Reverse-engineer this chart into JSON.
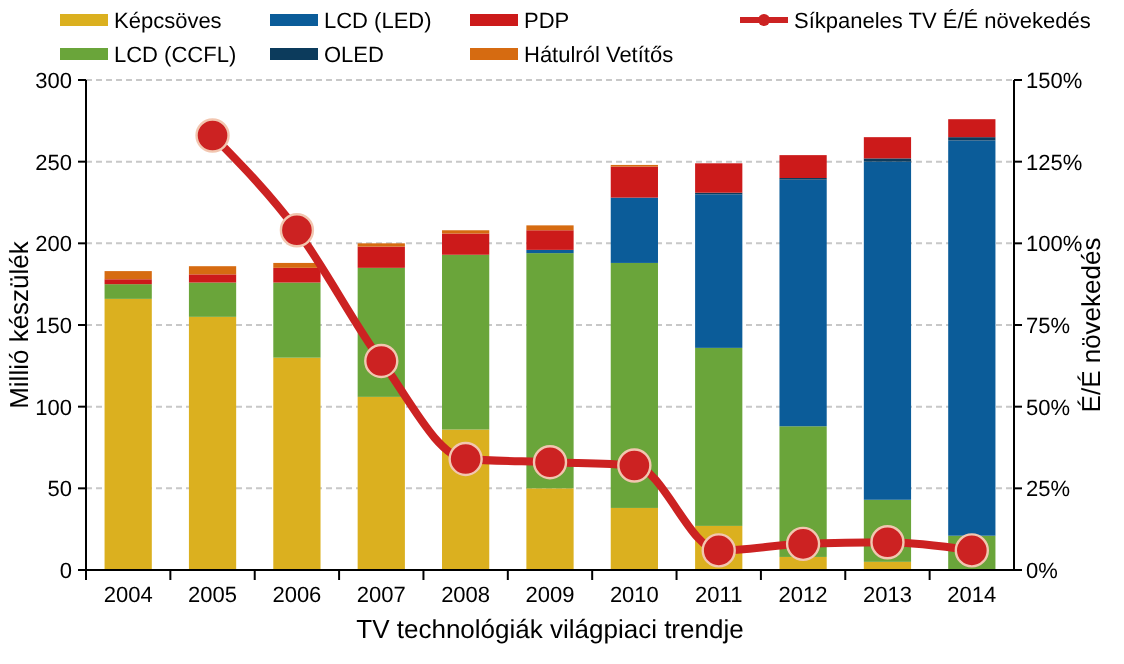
{
  "chart_data": {
    "type": "bar",
    "stacked": true,
    "xlabel": "TV technológiák világpiaci trendje",
    "ylabel": "Millió készülék",
    "y2label": "É/É növekedés",
    "categories": [
      "2004",
      "2005",
      "2006",
      "2007",
      "2008",
      "2009",
      "2010",
      "2011",
      "2012",
      "2013",
      "2014"
    ],
    "ylim": [
      0,
      300
    ],
    "yticks": [
      0,
      50,
      100,
      150,
      200,
      250,
      300
    ],
    "y2lim": [
      0,
      150
    ],
    "y2ticks": [
      {
        "value": 0,
        "label": "0%"
      },
      {
        "value": 25,
        "label": "25%"
      },
      {
        "value": 50,
        "label": "50%"
      },
      {
        "value": 75,
        "label": "75%"
      },
      {
        "value": 100,
        "label": "100%"
      },
      {
        "value": 125,
        "label": "125%"
      },
      {
        "value": 150,
        "label": "150%"
      }
    ],
    "grid": "y",
    "legend": "top",
    "marker": "circle",
    "series": [
      {
        "name": "Képcsöves",
        "color": "#dbb01f",
        "values": [
          166,
          155,
          130,
          106,
          86,
          50,
          38,
          27,
          8,
          5,
          0
        ]
      },
      {
        "name": "LCD (CCFL)",
        "color": "#6aa53a",
        "values": [
          9,
          21,
          46,
          79,
          107,
          144,
          150,
          109,
          80,
          38,
          21
        ]
      },
      {
        "name": "LCD (LED)",
        "color": "#0b5c99",
        "values": [
          0,
          0,
          0,
          0,
          0,
          2,
          40,
          94,
          151,
          207,
          242
        ]
      },
      {
        "name": "OLED",
        "color": "#0c3b5c",
        "values": [
          0,
          0,
          0,
          0,
          0,
          0,
          0,
          1,
          1,
          2,
          2
        ]
      },
      {
        "name": "PDP",
        "color": "#cc1a1a",
        "values": [
          3,
          5,
          9,
          13,
          13,
          12,
          19,
          18,
          14,
          13,
          11
        ]
      },
      {
        "name": "Hátulról Vetítős",
        "color": "#d66b11",
        "values": [
          5,
          5,
          3,
          2,
          2,
          3,
          1,
          0,
          0,
          0,
          0
        ]
      },
      {
        "name": "Síkpaneles TV É/É növekedés",
        "type": "line",
        "axis": "y2",
        "color": "#cc2222",
        "values": [
          null,
          133,
          104,
          64,
          34,
          33,
          32,
          6,
          8,
          8.5,
          6
        ]
      }
    ]
  }
}
